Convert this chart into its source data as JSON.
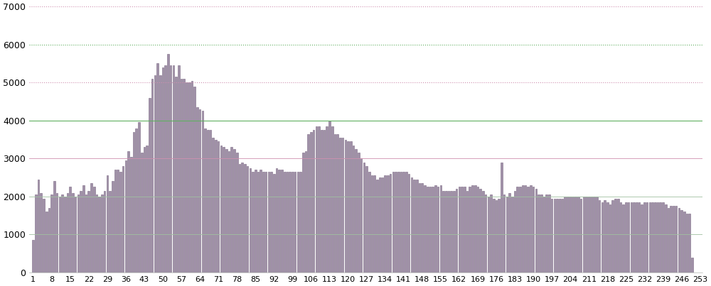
{
  "values": [
    850,
    2050,
    2450,
    2100,
    1950,
    1600,
    1700,
    2050,
    2400,
    2100,
    2000,
    2050,
    2000,
    2100,
    2250,
    2100,
    2000,
    2050,
    2150,
    2300,
    2050,
    2150,
    2350,
    2250,
    2050,
    2000,
    2050,
    2150,
    2550,
    2150,
    2400,
    2700,
    2700,
    2650,
    2800,
    2950,
    3200,
    3050,
    3700,
    3800,
    3950,
    3150,
    3300,
    3350,
    4600,
    5100,
    5200,
    5500,
    5200,
    5400,
    5450,
    5750,
    5450,
    5450,
    5150,
    5450,
    5100,
    5100,
    5000,
    5000,
    5050,
    4900,
    4350,
    4300,
    4250,
    3800,
    3750,
    3750,
    3550,
    3500,
    3450,
    3350,
    3300,
    3250,
    3200,
    3300,
    3250,
    3150,
    2850,
    2900,
    2850,
    2800,
    2750,
    2650,
    2700,
    2650,
    2700,
    2650,
    2650,
    2650,
    2650,
    2600,
    2750,
    2700,
    2700,
    2650,
    2650,
    2650,
    2650,
    2650,
    2650,
    2650,
    3150,
    3200,
    3650,
    3700,
    3750,
    3850,
    3850,
    3750,
    3750,
    3850,
    4000,
    3850,
    3650,
    3650,
    3550,
    3550,
    3500,
    3450,
    3450,
    3350,
    3250,
    3150,
    3000,
    2900,
    2800,
    2650,
    2550,
    2550,
    2450,
    2500,
    2500,
    2550,
    2550,
    2600,
    2650,
    2650,
    2650,
    2650,
    2650,
    2650,
    2600,
    2500,
    2450,
    2450,
    2350,
    2350,
    2300,
    2250,
    2250,
    2250,
    2300,
    2250,
    2300,
    2150,
    2150,
    2150,
    2150,
    2150,
    2200,
    2250,
    2250,
    2250,
    2150,
    2250,
    2300,
    2300,
    2250,
    2200,
    2150,
    2050,
    2000,
    2050,
    1950,
    1900,
    1950,
    2900,
    2050,
    2000,
    2100,
    2000,
    2150,
    2250,
    2250,
    2300,
    2300,
    2250,
    2300,
    2250,
    2200,
    2050,
    2050,
    2000,
    2050,
    2050,
    1950,
    1950,
    1950,
    1950,
    1950,
    2000,
    2000,
    2000,
    2000,
    2000,
    2000,
    1950,
    2000,
    2000,
    2000,
    2000,
    2000,
    2000,
    1900,
    1850,
    1900,
    1850,
    1800,
    1900,
    1950,
    1950,
    1850,
    1800,
    1850,
    1850,
    1850,
    1850,
    1850,
    1850,
    1800,
    1850,
    1850,
    1850,
    1850,
    1850,
    1850,
    1850,
    1850,
    1800,
    1700,
    1750,
    1750,
    1750,
    1700,
    1650,
    1600,
    1550,
    1550,
    400
  ],
  "bar_color": "#a090a8",
  "edge_color": "#7a6882",
  "grid_lines": [
    {
      "y": 0,
      "color": "#60b060",
      "linestyle": "-",
      "linewidth": 0.8
    },
    {
      "y": 1000,
      "color": "#a0c0a0",
      "linestyle": "-",
      "linewidth": 0.6
    },
    {
      "y": 2000,
      "color": "#a0c0a0",
      "linestyle": "-",
      "linewidth": 0.6
    },
    {
      "y": 3000,
      "color": "#d090b0",
      "linestyle": "-",
      "linewidth": 0.6
    },
    {
      "y": 4000,
      "color": "#60b060",
      "linestyle": "-",
      "linewidth": 0.8
    },
    {
      "y": 5000,
      "color": "#d090b0",
      "linestyle": ":",
      "linewidth": 0.8
    },
    {
      "y": 6000,
      "color": "#60b060",
      "linestyle": ":",
      "linewidth": 0.8
    },
    {
      "y": 7000,
      "color": "#d090b0",
      "linestyle": ":",
      "linewidth": 0.8
    }
  ],
  "background_color": "#ffffff",
  "yticks": [
    0,
    1000,
    2000,
    3000,
    4000,
    5000,
    6000,
    7000
  ],
  "xtick_values": [
    1,
    8,
    15,
    22,
    29,
    36,
    43,
    50,
    57,
    64,
    71,
    78,
    85,
    92,
    99,
    106,
    113,
    120,
    127,
    134,
    141,
    148,
    155,
    162,
    169,
    176,
    183,
    190,
    197,
    204,
    211,
    218,
    225,
    232,
    239,
    246,
    253
  ],
  "ylim": [
    0,
    7000
  ],
  "xlim": [
    -0.5,
    254
  ]
}
